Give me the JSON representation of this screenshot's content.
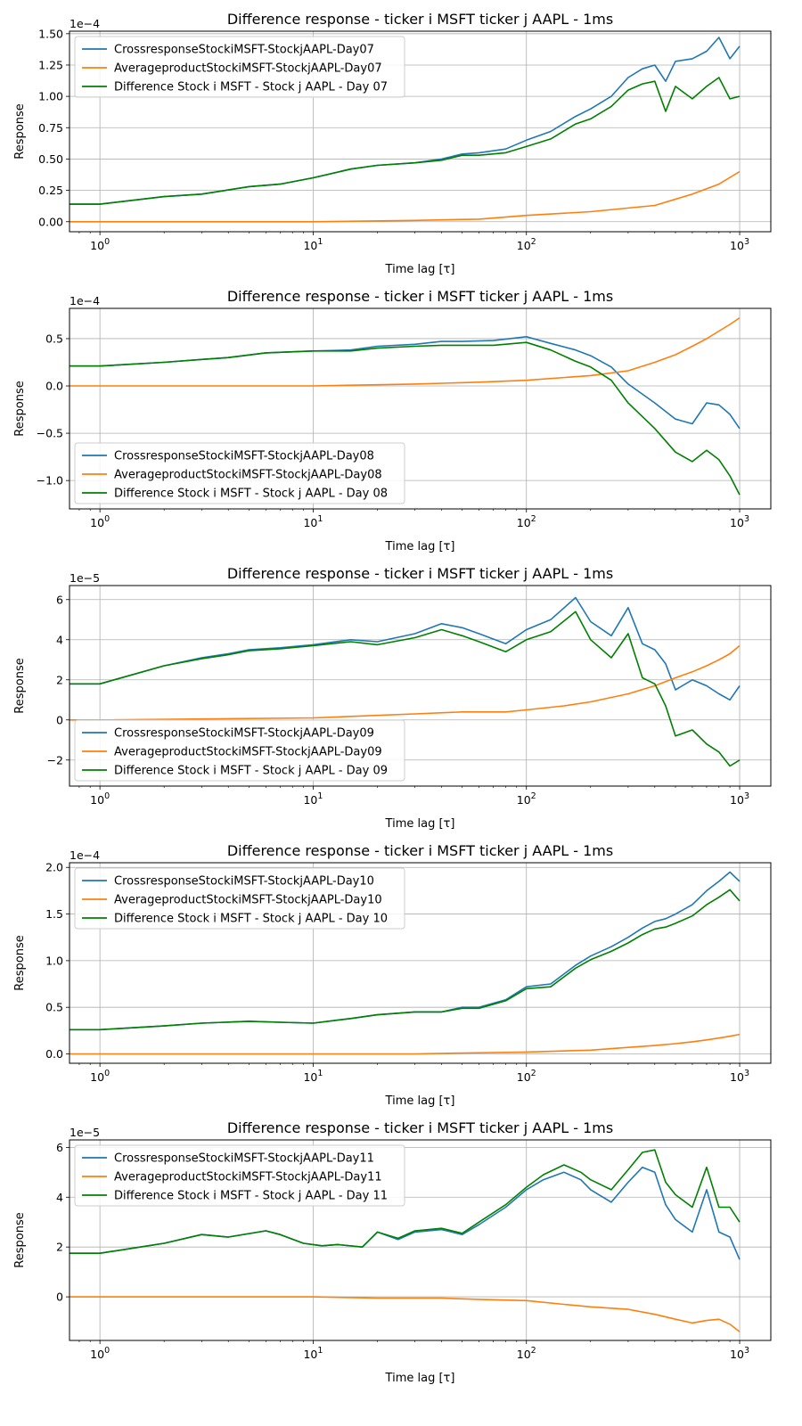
{
  "chart_data": [
    {
      "type": "line",
      "title": "Difference response - ticker i MSFT ticker j AAPL - 1ms",
      "xlabel": "Time lag [τ]",
      "ylabel": "Response",
      "xscale": "log",
      "xlim": [
        0.72,
        1400
      ],
      "x_ticks": [
        1,
        10,
        100,
        1000
      ],
      "x_tick_labels": [
        "10^0",
        "10^1",
        "10^2",
        "10^3"
      ],
      "y_multiplier_label": "1e−4",
      "y_multiplier": 0.0001,
      "ylim": [
        -0.08,
        1.52
      ],
      "y_ticks": [
        0.0,
        0.25,
        0.5,
        0.75,
        1.0,
        1.25,
        1.5
      ],
      "y_tick_labels": [
        "0.00",
        "0.25",
        "0.50",
        "0.75",
        "1.00",
        "1.25",
        "1.50"
      ],
      "grid": true,
      "legend_position": "upper-left",
      "series": [
        {
          "name": "CrossresponseStockiMSFT-StockjAAPL-Day07",
          "color": "#1f77b4",
          "x": [
            0.72,
            1,
            2,
            3,
            5,
            7,
            10,
            15,
            20,
            30,
            40,
            50,
            60,
            80,
            100,
            130,
            170,
            200,
            250,
            300,
            350,
            400,
            450,
            500,
            600,
            700,
            800,
            900,
            1000
          ],
          "y": [
            0.14,
            0.14,
            0.2,
            0.22,
            0.28,
            0.3,
            0.35,
            0.42,
            0.45,
            0.47,
            0.5,
            0.54,
            0.55,
            0.58,
            0.65,
            0.72,
            0.84,
            0.9,
            1.0,
            1.15,
            1.22,
            1.25,
            1.12,
            1.28,
            1.3,
            1.36,
            1.47,
            1.3,
            1.4
          ]
        },
        {
          "name": "AverageproductStockiMSFT-StockjAAPL-Day07",
          "color": "#ff7f0e",
          "x": [
            0.72,
            1,
            10,
            30,
            60,
            100,
            200,
            400,
            600,
            800,
            1000
          ],
          "y": [
            0.0,
            0.0,
            0.0,
            0.01,
            0.02,
            0.05,
            0.08,
            0.13,
            0.22,
            0.3,
            0.4
          ]
        },
        {
          "name": "Difference Stock i MSFT - Stock j AAPL - Day 07",
          "color": "#008000",
          "x": [
            0.72,
            1,
            2,
            3,
            5,
            7,
            10,
            15,
            20,
            30,
            40,
            50,
            60,
            80,
            100,
            130,
            170,
            200,
            250,
            300,
            350,
            400,
            450,
            500,
            600,
            700,
            800,
            900,
            1000
          ],
          "y": [
            0.14,
            0.14,
            0.2,
            0.22,
            0.28,
            0.3,
            0.35,
            0.42,
            0.45,
            0.47,
            0.49,
            0.53,
            0.53,
            0.55,
            0.6,
            0.66,
            0.78,
            0.82,
            0.92,
            1.05,
            1.1,
            1.12,
            0.88,
            1.08,
            0.98,
            1.08,
            1.15,
            0.98,
            1.0
          ]
        }
      ]
    },
    {
      "type": "line",
      "title": "Difference response - ticker i MSFT ticker j AAPL - 1ms",
      "xlabel": "Time lag [τ]",
      "ylabel": "Response",
      "xscale": "log",
      "xlim": [
        0.72,
        1400
      ],
      "x_ticks": [
        1,
        10,
        100,
        1000
      ],
      "x_tick_labels": [
        "10^0",
        "10^1",
        "10^2",
        "10^3"
      ],
      "y_multiplier_label": "1e−4",
      "y_multiplier": 0.0001,
      "ylim": [
        -1.3,
        0.82
      ],
      "y_ticks": [
        -1.0,
        -0.5,
        0.0,
        0.5
      ],
      "y_tick_labels": [
        "−1.0",
        "−0.5",
        "0.0",
        "0.5"
      ],
      "grid": true,
      "legend_position": "lower-left",
      "series": [
        {
          "name": "CrossresponseStockiMSFT-StockjAAPL-Day08",
          "color": "#1f77b4",
          "x": [
            0.72,
            1,
            2,
            3,
            4,
            6,
            10,
            15,
            20,
            30,
            40,
            50,
            70,
            100,
            130,
            170,
            200,
            250,
            300,
            400,
            500,
            600,
            700,
            800,
            900,
            1000
          ],
          "y": [
            0.21,
            0.21,
            0.25,
            0.28,
            0.3,
            0.35,
            0.37,
            0.38,
            0.42,
            0.44,
            0.47,
            0.47,
            0.48,
            0.52,
            0.45,
            0.38,
            0.32,
            0.2,
            0.02,
            -0.18,
            -0.35,
            -0.4,
            -0.18,
            -0.2,
            -0.3,
            -0.45
          ]
        },
        {
          "name": "AverageproductStockiMSFT-StockjAAPL-Day08",
          "color": "#ff7f0e",
          "x": [
            0.72,
            1,
            10,
            30,
            60,
            100,
            200,
            300,
            400,
            500,
            600,
            700,
            800,
            900,
            1000
          ],
          "y": [
            0.0,
            0.0,
            0.0,
            0.02,
            0.04,
            0.06,
            0.11,
            0.16,
            0.25,
            0.33,
            0.42,
            0.5,
            0.58,
            0.65,
            0.72
          ]
        },
        {
          "name": "Difference Stock i MSFT - Stock j AAPL - Day 08",
          "color": "#008000",
          "x": [
            0.72,
            1,
            2,
            3,
            4,
            6,
            10,
            15,
            20,
            30,
            40,
            50,
            70,
            100,
            130,
            170,
            200,
            250,
            300,
            400,
            500,
            600,
            700,
            800,
            900,
            1000
          ],
          "y": [
            0.21,
            0.21,
            0.25,
            0.28,
            0.3,
            0.35,
            0.37,
            0.37,
            0.4,
            0.42,
            0.43,
            0.43,
            0.43,
            0.46,
            0.38,
            0.26,
            0.2,
            0.06,
            -0.18,
            -0.45,
            -0.7,
            -0.8,
            -0.68,
            -0.78,
            -0.95,
            -1.15
          ]
        }
      ]
    },
    {
      "type": "line",
      "title": "Difference response - ticker i MSFT ticker j AAPL - 1ms",
      "xlabel": "Time lag [τ]",
      "ylabel": "Response",
      "xscale": "log",
      "xlim": [
        0.72,
        1400
      ],
      "x_ticks": [
        1,
        10,
        100,
        1000
      ],
      "x_tick_labels": [
        "10^0",
        "10^1",
        "10^2",
        "10^3"
      ],
      "y_multiplier_label": "1e−5",
      "y_multiplier": 1e-05,
      "ylim": [
        -3.3,
        6.7
      ],
      "y_ticks": [
        -2,
        0,
        2,
        4,
        6
      ],
      "y_tick_labels": [
        "−2",
        "0",
        "2",
        "4",
        "6"
      ],
      "grid": true,
      "legend_position": "lower-left",
      "series": [
        {
          "name": "CrossresponseStockiMSFT-StockjAAPL-Day09",
          "color": "#1f77b4",
          "x": [
            0.72,
            1,
            2,
            3,
            4,
            5,
            7,
            10,
            15,
            20,
            30,
            40,
            50,
            60,
            80,
            100,
            130,
            170,
            200,
            250,
            300,
            350,
            400,
            450,
            500,
            600,
            700,
            800,
            900,
            1000
          ],
          "y": [
            1.8,
            1.8,
            2.7,
            3.1,
            3.3,
            3.5,
            3.6,
            3.75,
            4.0,
            3.9,
            4.3,
            4.8,
            4.6,
            4.3,
            3.8,
            4.5,
            5.0,
            6.1,
            4.9,
            4.2,
            5.6,
            3.8,
            3.5,
            2.8,
            1.5,
            2.0,
            1.7,
            1.3,
            1.0,
            1.7
          ]
        },
        {
          "name": "AverageproductStockiMSFT-StockjAAPL-Day09",
          "color": "#ff7f0e",
          "x": [
            0.72,
            1,
            10,
            30,
            50,
            80,
            100,
            150,
            200,
            300,
            400,
            500,
            600,
            700,
            800,
            900,
            1000
          ],
          "y": [
            0.0,
            0.0,
            0.1,
            0.3,
            0.4,
            0.4,
            0.5,
            0.7,
            0.9,
            1.3,
            1.7,
            2.1,
            2.4,
            2.7,
            3.0,
            3.3,
            3.7
          ]
        },
        {
          "name": "Difference Stock i MSFT - Stock j AAPL - Day 09",
          "color": "#008000",
          "x": [
            0.72,
            1,
            2,
            3,
            4,
            5,
            7,
            10,
            15,
            20,
            30,
            40,
            50,
            60,
            80,
            100,
            130,
            170,
            200,
            250,
            300,
            350,
            400,
            450,
            500,
            600,
            700,
            800,
            900,
            1000
          ],
          "y": [
            1.8,
            1.8,
            2.7,
            3.05,
            3.25,
            3.45,
            3.55,
            3.7,
            3.9,
            3.75,
            4.1,
            4.5,
            4.2,
            3.9,
            3.4,
            4.0,
            4.4,
            5.4,
            4.0,
            3.1,
            4.3,
            2.1,
            1.8,
            0.7,
            -0.8,
            -0.5,
            -1.2,
            -1.6,
            -2.3,
            -2.0
          ]
        }
      ]
    },
    {
      "type": "line",
      "title": "Difference response - ticker i MSFT ticker j AAPL - 1ms",
      "xlabel": "Time lag [τ]",
      "ylabel": "Response",
      "xscale": "log",
      "xlim": [
        0.72,
        1400
      ],
      "x_ticks": [
        1,
        10,
        100,
        1000
      ],
      "x_tick_labels": [
        "10^0",
        "10^1",
        "10^2",
        "10^3"
      ],
      "y_multiplier_label": "1e−4",
      "y_multiplier": 0.0001,
      "ylim": [
        -0.1,
        2.05
      ],
      "y_ticks": [
        0.0,
        0.5,
        1.0,
        1.5,
        2.0
      ],
      "y_tick_labels": [
        "0.0",
        "0.5",
        "1.0",
        "1.5",
        "2.0"
      ],
      "grid": true,
      "legend_position": "upper-left",
      "series": [
        {
          "name": "CrossresponseStockiMSFT-StockjAAPL-Day10",
          "color": "#1f77b4",
          "x": [
            0.72,
            1,
            2,
            3,
            5,
            7,
            10,
            15,
            20,
            30,
            40,
            50,
            60,
            80,
            100,
            130,
            170,
            200,
            250,
            300,
            350,
            400,
            450,
            500,
            600,
            700,
            800,
            900,
            1000
          ],
          "y": [
            0.26,
            0.26,
            0.3,
            0.33,
            0.35,
            0.34,
            0.33,
            0.38,
            0.42,
            0.45,
            0.45,
            0.5,
            0.5,
            0.58,
            0.72,
            0.75,
            0.95,
            1.05,
            1.15,
            1.25,
            1.35,
            1.42,
            1.45,
            1.5,
            1.6,
            1.75,
            1.85,
            1.95,
            1.85
          ]
        },
        {
          "name": "AverageproductStockiMSFT-StockjAAPL-Day10",
          "color": "#ff7f0e",
          "x": [
            0.72,
            1,
            10,
            30,
            50,
            100,
            200,
            300,
            400,
            500,
            600,
            700,
            800,
            900,
            1000
          ],
          "y": [
            0.0,
            0.0,
            0.0,
            0.0,
            0.01,
            0.02,
            0.04,
            0.07,
            0.09,
            0.11,
            0.13,
            0.15,
            0.17,
            0.19,
            0.21
          ]
        },
        {
          "name": "Difference Stock i MSFT - Stock j AAPL - Day 10",
          "color": "#008000",
          "x": [
            0.72,
            1,
            2,
            3,
            5,
            7,
            10,
            15,
            20,
            30,
            40,
            50,
            60,
            80,
            100,
            130,
            170,
            200,
            250,
            300,
            350,
            400,
            450,
            500,
            600,
            700,
            800,
            900,
            1000
          ],
          "y": [
            0.26,
            0.26,
            0.3,
            0.33,
            0.35,
            0.34,
            0.33,
            0.38,
            0.42,
            0.45,
            0.45,
            0.49,
            0.49,
            0.57,
            0.7,
            0.72,
            0.92,
            1.01,
            1.1,
            1.19,
            1.28,
            1.34,
            1.36,
            1.4,
            1.48,
            1.6,
            1.68,
            1.76,
            1.64
          ]
        }
      ]
    },
    {
      "type": "line",
      "title": "Difference response - ticker i MSFT ticker j AAPL - 1ms",
      "xlabel": "Time lag [τ]",
      "ylabel": "Response",
      "xscale": "log",
      "xlim": [
        0.72,
        1400
      ],
      "x_ticks": [
        1,
        10,
        100,
        1000
      ],
      "x_tick_labels": [
        "10^0",
        "10^1",
        "10^2",
        "10^3"
      ],
      "y_multiplier_label": "1e−5",
      "y_multiplier": 1e-05,
      "ylim": [
        -1.75,
        6.3
      ],
      "y_ticks": [
        0,
        2,
        4,
        6
      ],
      "y_tick_labels": [
        "0",
        "2",
        "4",
        "6"
      ],
      "grid": true,
      "legend_position": "upper-left",
      "series": [
        {
          "name": "CrossresponseStockiMSFT-StockjAAPL-Day11",
          "color": "#1f77b4",
          "x": [
            0.72,
            1,
            2,
            3,
            4,
            6,
            7,
            9,
            11,
            13,
            17,
            20,
            25,
            30,
            40,
            50,
            60,
            80,
            100,
            120,
            150,
            180,
            200,
            250,
            300,
            350,
            400,
            450,
            500,
            600,
            700,
            800,
            900,
            1000
          ],
          "y": [
            1.75,
            1.75,
            2.15,
            2.5,
            2.4,
            2.65,
            2.5,
            2.15,
            2.05,
            2.1,
            2.0,
            2.6,
            2.3,
            2.6,
            2.7,
            2.5,
            2.9,
            3.6,
            4.3,
            4.7,
            5.0,
            4.7,
            4.3,
            3.8,
            4.6,
            5.2,
            5.0,
            3.7,
            3.1,
            2.6,
            4.3,
            2.6,
            2.4,
            1.5
          ]
        },
        {
          "name": "AverageproductStockiMSFT-StockjAAPL-Day11",
          "color": "#ff7f0e",
          "x": [
            0.72,
            1,
            10,
            20,
            40,
            60,
            100,
            150,
            200,
            300,
            400,
            500,
            600,
            700,
            800,
            900,
            1000
          ],
          "y": [
            0.0,
            0.0,
            0.0,
            -0.05,
            -0.05,
            -0.1,
            -0.15,
            -0.3,
            -0.4,
            -0.5,
            -0.7,
            -0.9,
            -1.05,
            -0.95,
            -0.9,
            -1.1,
            -1.4
          ]
        },
        {
          "name": "Difference Stock i MSFT - Stock j AAPL - Day 11",
          "color": "#008000",
          "x": [
            0.72,
            1,
            2,
            3,
            4,
            6,
            7,
            9,
            11,
            13,
            17,
            20,
            25,
            30,
            40,
            50,
            60,
            80,
            100,
            120,
            150,
            180,
            200,
            250,
            300,
            350,
            400,
            450,
            500,
            600,
            700,
            800,
            900,
            1000
          ],
          "y": [
            1.75,
            1.75,
            2.15,
            2.5,
            2.4,
            2.65,
            2.5,
            2.15,
            2.05,
            2.1,
            2.0,
            2.6,
            2.35,
            2.65,
            2.75,
            2.55,
            3.0,
            3.7,
            4.4,
            4.9,
            5.3,
            5.0,
            4.7,
            4.3,
            5.1,
            5.8,
            5.9,
            4.6,
            4.1,
            3.6,
            5.2,
            3.6,
            3.6,
            3.0
          ]
        }
      ]
    }
  ]
}
